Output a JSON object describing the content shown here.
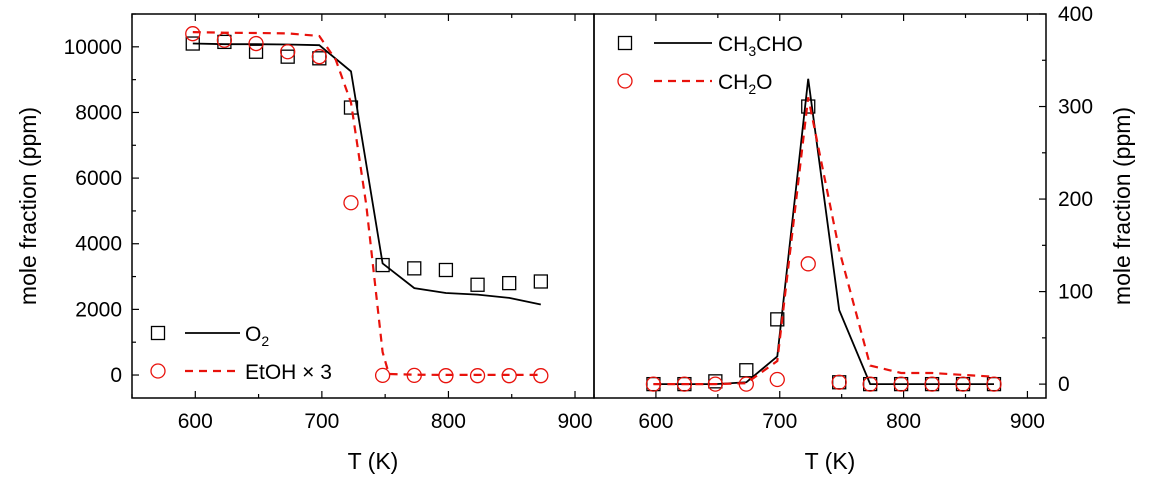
{
  "chart_data": [
    {
      "type": "line",
      "panel": "left",
      "xlabel": "T (K)",
      "ylabel": "mole fraction (ppm)",
      "xlim": [
        550,
        915
      ],
      "ylim": [
        -700,
        11000
      ],
      "xticks": [
        600,
        700,
        800,
        900
      ],
      "yticks": [
        0,
        2000,
        4000,
        6000,
        8000,
        10000
      ],
      "legend_position": "bottom-left",
      "series": [
        {
          "name": "O2",
          "label_main": "O",
          "label_sub": "2",
          "color": "#000000",
          "marker": "square",
          "line": "solid",
          "exp": {
            "x": [
              598,
              623,
              648,
              673,
              698,
              723,
              748,
              773,
              798,
              823,
              848,
              873
            ],
            "y": [
              10100,
              10150,
              9850,
              9700,
              9650,
              8150,
              3350,
              3250,
              3200,
              2750,
              2800,
              2850
            ]
          },
          "model": {
            "x": [
              598,
              623,
              648,
              673,
              698,
              723,
              748,
              773,
              798,
              823,
              848,
              873
            ],
            "y": [
              10100,
              10080,
              10080,
              10070,
              10050,
              9250,
              3400,
              2650,
              2500,
              2450,
              2350,
              2150
            ]
          }
        },
        {
          "name": "EtOH × 3",
          "label_main": "EtOH × 3",
          "color": "#e8120c",
          "marker": "circle",
          "line": "dashed",
          "exp": {
            "x": [
              598,
              623,
              648,
              673,
              698,
              723,
              748,
              773,
              798,
              823,
              848,
              873
            ],
            "y": [
              10400,
              10200,
              10100,
              9850,
              9700,
              5250,
              -10,
              -10,
              -20,
              -20,
              -20,
              -20
            ]
          },
          "model": {
            "x": [
              598,
              623,
              648,
              673,
              698,
              711,
              723,
              735,
              748,
              753,
              773,
              798,
              823,
              848,
              873
            ],
            "y": [
              10450,
              10430,
              10420,
              10410,
              10330,
              9600,
              8300,
              5200,
              700,
              30,
              10,
              5,
              5,
              5,
              5
            ]
          }
        }
      ]
    },
    {
      "type": "line",
      "panel": "right",
      "xlabel": "T (K)",
      "ylabel": "mole fraction (ppm)",
      "xlim": [
        550,
        915
      ],
      "ylim": [
        -15,
        400
      ],
      "xticks": [
        600,
        700,
        800,
        900
      ],
      "yticks": [
        0,
        100,
        200,
        300,
        400
      ],
      "legend_position": "top-left",
      "series": [
        {
          "name": "CH3CHO",
          "label_parts": [
            "CH",
            "3",
            "CHO"
          ],
          "color": "#000000",
          "marker": "square",
          "line": "solid",
          "exp": {
            "x": [
              598,
              623,
              648,
              673,
              698,
              723,
              748,
              773,
              798,
              823,
              848,
              873
            ],
            "y": [
              0,
              0,
              3,
              15,
              70,
              300,
              2,
              0,
              0,
              0,
              0,
              0
            ]
          },
          "model": {
            "x": [
              598,
              623,
              648,
              673,
              698,
              723,
              748,
              773,
              798,
              823,
              848,
              873
            ],
            "y": [
              0,
              0,
              0,
              2,
              30,
              330,
              80,
              0,
              0,
              0,
              0,
              0
            ]
          }
        },
        {
          "name": "CH2O",
          "label_parts": [
            "CH",
            "2",
            "O"
          ],
          "color": "#e8120c",
          "marker": "circle",
          "line": "dashed",
          "exp": {
            "x": [
              598,
              623,
              648,
              673,
              698,
              723,
              748,
              773,
              798,
              823,
              848,
              873
            ],
            "y": [
              0,
              0,
              0,
              0,
              5,
              130,
              2,
              0,
              0,
              0,
              0,
              0
            ]
          },
          "model": {
            "x": [
              598,
              623,
              648,
              673,
              698,
              723,
              748,
              773,
              798,
              823,
              848,
              873
            ],
            "y": [
              0,
              0,
              0,
              1,
              25,
              310,
              145,
              20,
              12,
              12,
              10,
              8
            ]
          }
        }
      ]
    }
  ]
}
